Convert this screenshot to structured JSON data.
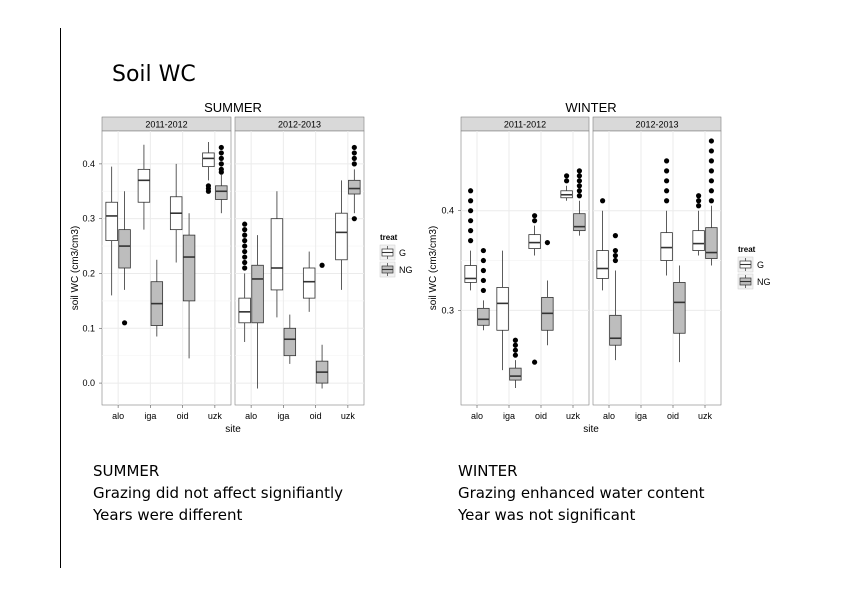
{
  "slide": {
    "title": "Soil WC"
  },
  "notes": {
    "summer": [
      "SUMMER",
      "Grazing did not affect signifiantly",
      "Years were different"
    ],
    "winter": [
      "WINTER",
      "Grazing enhanced water content",
      "Year was not significant"
    ]
  },
  "chart_data": [
    {
      "type": "boxplot",
      "title": "SUMMER",
      "xlabel": "site",
      "ylabel": "soil WC (cm3/cm3)",
      "facets": [
        "2011-2012",
        "2012-2013"
      ],
      "categories": [
        "alo",
        "iga",
        "oid",
        "uzk"
      ],
      "ylim": [
        -0.04,
        0.46
      ],
      "yticks": [
        0.0,
        0.1,
        0.2,
        0.3,
        0.4
      ],
      "ytick_labels": [
        "0.0",
        "0.1",
        "0.2",
        "0.3",
        "0.4"
      ],
      "legend": {
        "title": "treat",
        "entries": [
          "G",
          "NG"
        ],
        "placement": "right"
      },
      "grid": true,
      "series": [
        {
          "facet": "2011-2012",
          "site": "alo",
          "treat": "G",
          "min": 0.16,
          "q1": 0.26,
          "median": 0.305,
          "q3": 0.33,
          "max": 0.395,
          "outliers": []
        },
        {
          "facet": "2011-2012",
          "site": "alo",
          "treat": "NG",
          "min": 0.17,
          "q1": 0.21,
          "median": 0.25,
          "q3": 0.28,
          "max": 0.35,
          "outliers": [
            0.11
          ]
        },
        {
          "facet": "2011-2012",
          "site": "iga",
          "treat": "G",
          "min": 0.28,
          "q1": 0.33,
          "median": 0.37,
          "q3": 0.39,
          "max": 0.435,
          "outliers": []
        },
        {
          "facet": "2011-2012",
          "site": "iga",
          "treat": "NG",
          "min": 0.085,
          "q1": 0.105,
          "median": 0.145,
          "q3": 0.185,
          "max": 0.225,
          "outliers": []
        },
        {
          "facet": "2011-2012",
          "site": "oid",
          "treat": "G",
          "min": 0.22,
          "q1": 0.28,
          "median": 0.31,
          "q3": 0.34,
          "max": 0.4,
          "outliers": []
        },
        {
          "facet": "2011-2012",
          "site": "oid",
          "treat": "NG",
          "min": 0.045,
          "q1": 0.15,
          "median": 0.23,
          "q3": 0.27,
          "max": 0.31,
          "outliers": []
        },
        {
          "facet": "2011-2012",
          "site": "uzk",
          "treat": "G",
          "min": 0.37,
          "q1": 0.395,
          "median": 0.41,
          "q3": 0.42,
          "max": 0.44,
          "outliers": [
            0.35,
            0.355,
            0.36
          ]
        },
        {
          "facet": "2011-2012",
          "site": "uzk",
          "treat": "NG",
          "min": 0.31,
          "q1": 0.335,
          "median": 0.35,
          "q3": 0.36,
          "max": 0.38,
          "outliers": [
            0.385,
            0.39,
            0.4,
            0.41,
            0.42,
            0.43
          ]
        },
        {
          "facet": "2012-2013",
          "site": "alo",
          "treat": "G",
          "min": 0.075,
          "q1": 0.11,
          "median": 0.13,
          "q3": 0.155,
          "max": 0.2,
          "outliers": [
            0.21,
            0.22,
            0.23,
            0.24,
            0.25,
            0.26,
            0.27,
            0.28,
            0.29
          ]
        },
        {
          "facet": "2012-2013",
          "site": "alo",
          "treat": "NG",
          "min": -0.01,
          "q1": 0.11,
          "median": 0.19,
          "q3": 0.215,
          "max": 0.27,
          "outliers": []
        },
        {
          "facet": "2012-2013",
          "site": "iga",
          "treat": "G",
          "min": 0.12,
          "q1": 0.17,
          "median": 0.21,
          "q3": 0.3,
          "max": 0.35,
          "outliers": []
        },
        {
          "facet": "2012-2013",
          "site": "iga",
          "treat": "NG",
          "min": 0.035,
          "q1": 0.05,
          "median": 0.08,
          "q3": 0.1,
          "max": 0.125,
          "outliers": []
        },
        {
          "facet": "2012-2013",
          "site": "oid",
          "treat": "G",
          "min": 0.13,
          "q1": 0.155,
          "median": 0.185,
          "q3": 0.21,
          "max": 0.24,
          "outliers": []
        },
        {
          "facet": "2012-2013",
          "site": "oid",
          "treat": "NG",
          "min": -0.01,
          "q1": 0.0,
          "median": 0.02,
          "q3": 0.04,
          "max": 0.07,
          "outliers": [
            0.215
          ]
        },
        {
          "facet": "2012-2013",
          "site": "uzk",
          "treat": "G",
          "min": 0.17,
          "q1": 0.225,
          "median": 0.275,
          "q3": 0.31,
          "max": 0.37,
          "outliers": []
        },
        {
          "facet": "2012-2013",
          "site": "uzk",
          "treat": "NG",
          "min": 0.31,
          "q1": 0.345,
          "median": 0.355,
          "q3": 0.37,
          "max": 0.39,
          "outliers": [
            0.3,
            0.4,
            0.41,
            0.42,
            0.43
          ]
        }
      ]
    },
    {
      "type": "boxplot",
      "title": "WINTER",
      "xlabel": "site",
      "ylabel": "soil WC (cm3/cm3)",
      "facets": [
        "2011-2012",
        "2012-2013"
      ],
      "categories": [
        "alo",
        "iga",
        "oid",
        "uzk"
      ],
      "ylim": [
        0.205,
        0.48
      ],
      "yticks": [
        0.3,
        0.4
      ],
      "ytick_labels": [
        "0.3",
        "0.4"
      ],
      "legend": {
        "title": "treat",
        "entries": [
          "G",
          "NG"
        ],
        "placement": "right"
      },
      "grid": true,
      "series": [
        {
          "facet": "2011-2012",
          "site": "alo",
          "treat": "G",
          "min": 0.32,
          "q1": 0.328,
          "median": 0.332,
          "q3": 0.345,
          "max": 0.36,
          "outliers": [
            0.37,
            0.38,
            0.39,
            0.4,
            0.41,
            0.42
          ]
        },
        {
          "facet": "2011-2012",
          "site": "alo",
          "treat": "NG",
          "min": 0.28,
          "q1": 0.285,
          "median": 0.291,
          "q3": 0.302,
          "max": 0.31,
          "outliers": [
            0.32,
            0.33,
            0.34,
            0.35,
            0.36
          ]
        },
        {
          "facet": "2011-2012",
          "site": "iga",
          "treat": "G",
          "min": 0.24,
          "q1": 0.28,
          "median": 0.307,
          "q3": 0.323,
          "max": 0.36,
          "outliers": []
        },
        {
          "facet": "2011-2012",
          "site": "iga",
          "treat": "NG",
          "min": 0.222,
          "q1": 0.23,
          "median": 0.234,
          "q3": 0.242,
          "max": 0.25,
          "outliers": [
            0.255,
            0.26,
            0.265,
            0.27
          ]
        },
        {
          "facet": "2011-2012",
          "site": "oid",
          "treat": "G",
          "min": 0.355,
          "q1": 0.362,
          "median": 0.368,
          "q3": 0.376,
          "max": 0.385,
          "outliers": [
            0.39,
            0.395,
            0.248
          ]
        },
        {
          "facet": "2011-2012",
          "site": "oid",
          "treat": "NG",
          "min": 0.265,
          "q1": 0.28,
          "median": 0.297,
          "q3": 0.313,
          "max": 0.33,
          "outliers": [
            0.368
          ]
        },
        {
          "facet": "2011-2012",
          "site": "uzk",
          "treat": "G",
          "min": 0.41,
          "q1": 0.413,
          "median": 0.416,
          "q3": 0.42,
          "max": 0.425,
          "outliers": [
            0.43,
            0.435
          ]
        },
        {
          "facet": "2011-2012",
          "site": "uzk",
          "treat": "NG",
          "min": 0.375,
          "q1": 0.38,
          "median": 0.384,
          "q3": 0.397,
          "max": 0.41,
          "outliers": [
            0.415,
            0.42,
            0.425,
            0.43,
            0.435,
            0.44
          ]
        },
        {
          "facet": "2012-2013",
          "site": "alo",
          "treat": "G",
          "min": 0.32,
          "q1": 0.332,
          "median": 0.342,
          "q3": 0.36,
          "max": 0.4,
          "outliers": [
            0.41
          ]
        },
        {
          "facet": "2012-2013",
          "site": "alo",
          "treat": "NG",
          "min": 0.25,
          "q1": 0.265,
          "median": 0.272,
          "q3": 0.295,
          "max": 0.34,
          "outliers": [
            0.35,
            0.355,
            0.36,
            0.375
          ]
        },
        {
          "facet": "2012-2013",
          "site": "oid",
          "treat": "G",
          "min": 0.335,
          "q1": 0.35,
          "median": 0.363,
          "q3": 0.378,
          "max": 0.4,
          "outliers": [
            0.41,
            0.42,
            0.43,
            0.44,
            0.45
          ]
        },
        {
          "facet": "2012-2013",
          "site": "oid",
          "treat": "NG",
          "min": 0.248,
          "q1": 0.277,
          "median": 0.308,
          "q3": 0.328,
          "max": 0.345,
          "outliers": []
        },
        {
          "facet": "2012-2013",
          "site": "uzk",
          "treat": "G",
          "min": 0.355,
          "q1": 0.36,
          "median": 0.367,
          "q3": 0.38,
          "max": 0.4,
          "outliers": [
            0.405,
            0.41,
            0.415
          ]
        },
        {
          "facet": "2012-2013",
          "site": "uzk",
          "treat": "NG",
          "min": 0.345,
          "q1": 0.352,
          "median": 0.358,
          "q3": 0.383,
          "max": 0.405,
          "outliers": [
            0.41,
            0.42,
            0.43,
            0.44,
            0.45,
            0.46,
            0.47
          ]
        }
      ]
    }
  ]
}
